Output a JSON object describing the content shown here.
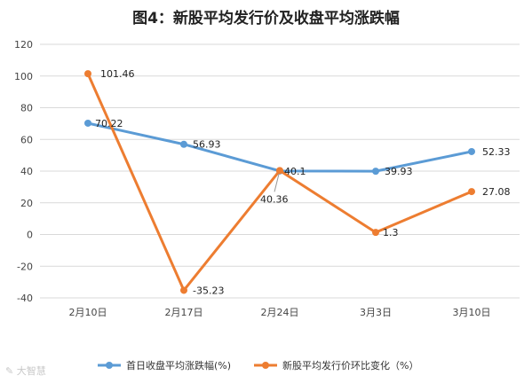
{
  "title": "图4：新股平均发行价及收盘平均涨跌幅",
  "watermark": "大智慧",
  "chart_data": {
    "type": "line",
    "title": "图4：新股平均发行价及收盘平均涨跌幅",
    "categories": [
      "2月10日",
      "2月17日",
      "2月24日",
      "3月3日",
      "3月10日"
    ],
    "ylim": [
      -40,
      120
    ],
    "yticks": [
      -40,
      -20,
      0,
      20,
      40,
      60,
      80,
      100,
      120
    ],
    "grid": true,
    "legend_position": "bottom",
    "series": [
      {
        "name": "首日收盘平均涨跌幅(%)",
        "color": "#5B9BD5",
        "values": [
          70.22,
          56.93,
          40.1,
          39.93,
          52.33
        ],
        "labels": [
          "70.22",
          "56.93",
          "40.1",
          "39.93",
          "52.33"
        ]
      },
      {
        "name": "新股平均发行价环比变化（%）",
        "color": "#ED7D31",
        "values": [
          101.46,
          -35.23,
          40.36,
          1.3,
          27.08
        ],
        "labels": [
          "101.46",
          "-35.23",
          "40.36",
          "1.3",
          "27.08"
        ]
      }
    ]
  }
}
